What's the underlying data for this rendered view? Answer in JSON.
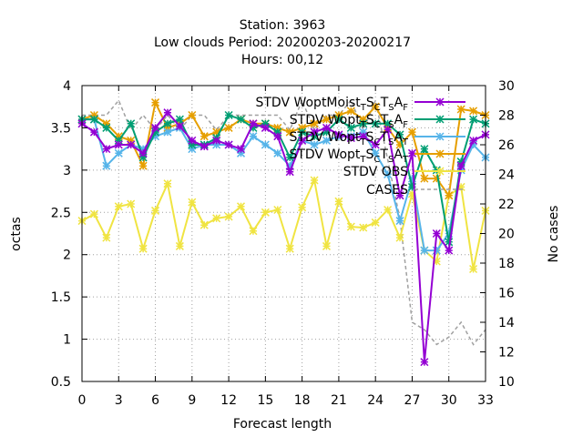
{
  "chart_data": {
    "type": "line",
    "title_lines": [
      "Station:      3963",
      "Low clouds   Period: 20200203-20200217",
      "Hours:  00,12"
    ],
    "xlabel": "Forecast length",
    "ylabel": "octas",
    "y2label": "No cases",
    "xlim": [
      0,
      33
    ],
    "ylim": [
      0.5,
      4
    ],
    "y2lim": [
      10,
      30
    ],
    "xticks": [
      "0",
      "3",
      "6",
      "9",
      "12",
      "15",
      "18",
      "21",
      "24",
      "27",
      "30",
      "33"
    ],
    "yticks": [
      "0.5",
      "1",
      "1.5",
      "2",
      "2.5",
      "3",
      "3.5",
      "4"
    ],
    "y2ticks": [
      "10",
      "12",
      "14",
      "16",
      "18",
      "20",
      "22",
      "24",
      "26",
      "28",
      "30"
    ],
    "grid": true,
    "legend_position": "top-right",
    "x": [
      0,
      1,
      2,
      3,
      4,
      5,
      6,
      7,
      8,
      9,
      10,
      11,
      12,
      13,
      14,
      15,
      16,
      17,
      18,
      19,
      20,
      21,
      22,
      23,
      24,
      25,
      26,
      27,
      28,
      29,
      30,
      31,
      32,
      33
    ],
    "series": [
      {
        "name": "STDV WoptMoist_TSCTSAF",
        "legend": {
          "base": "STDV WoptMoist",
          "subs": [
            "T",
            "S",
            "C",
            "T",
            "S",
            "A",
            "F"
          ]
        },
        "color": "#9400d3",
        "marker": "x",
        "axis": "y",
        "values": [
          3.55,
          3.45,
          3.25,
          3.3,
          3.3,
          3.2,
          3.5,
          3.68,
          3.52,
          3.35,
          3.28,
          3.35,
          3.3,
          3.25,
          3.55,
          3.5,
          3.4,
          2.98,
          3.35,
          3.45,
          3.5,
          3.42,
          3.38,
          3.4,
          3.3,
          3.48,
          2.7,
          3.2,
          0.73,
          2.25,
          2.05,
          3.05,
          3.35,
          3.42
        ]
      },
      {
        "name": "STDV Wopt_TSCTSAF",
        "legend": {
          "base": "STDV Wopt",
          "subs": [
            "T",
            "S",
            "C",
            "T",
            "S",
            "A",
            "F"
          ]
        },
        "color": "#009e73",
        "marker": "x",
        "axis": "y",
        "values": [
          3.6,
          3.6,
          3.5,
          3.35,
          3.55,
          3.15,
          3.45,
          3.55,
          3.6,
          3.3,
          3.3,
          3.38,
          3.65,
          3.6,
          3.5,
          3.55,
          3.45,
          3.15,
          3.45,
          3.4,
          3.45,
          3.6,
          3.5,
          3.55,
          3.55,
          3.55,
          3.42,
          2.8,
          3.25,
          3.0,
          2.15,
          3.1,
          3.6,
          3.55
        ]
      },
      {
        "name": "STDV Wopt_TSCTSAT",
        "legend": {
          "base": "STDV Wopt",
          "subs": [
            "T",
            "S",
            "C",
            "T",
            "S",
            "A",
            "T"
          ]
        },
        "color": "#56b4e9",
        "marker": "x",
        "axis": "y",
        "values": [
          3.6,
          3.6,
          3.05,
          3.2,
          3.3,
          3.25,
          3.4,
          3.45,
          3.5,
          3.25,
          3.3,
          3.3,
          3.3,
          3.2,
          3.4,
          3.3,
          3.2,
          3.05,
          3.35,
          3.3,
          3.35,
          3.4,
          3.4,
          3.45,
          3.2,
          2.95,
          2.4,
          2.9,
          2.05,
          2.05,
          2.25,
          3.0,
          3.3,
          3.15
        ]
      },
      {
        "name": "STDV Wopt_TSCTSAT",
        "legend": {
          "base": "STDV Wopt",
          "subs": [
            "T",
            "S",
            "C",
            "T",
            "S",
            "A",
            "T"
          ]
        },
        "color": "#e69f00",
        "marker": "x",
        "axis": "y",
        "values": [
          3.6,
          3.65,
          3.55,
          3.4,
          3.35,
          3.05,
          3.8,
          3.5,
          3.55,
          3.65,
          3.4,
          3.45,
          3.5,
          3.6,
          3.55,
          3.55,
          3.5,
          3.45,
          3.5,
          3.55,
          3.6,
          3.65,
          3.7,
          3.6,
          3.75,
          3.5,
          3.3,
          3.45,
          2.9,
          2.9,
          2.7,
          3.72,
          3.7,
          3.65
        ]
      },
      {
        "name": "STDV OBS",
        "legend": {
          "base": "STDV OBS",
          "subs": []
        },
        "color": "#f0e442",
        "marker": "x",
        "axis": "y",
        "values": [
          2.4,
          2.48,
          2.2,
          2.57,
          2.6,
          2.07,
          2.52,
          2.84,
          2.1,
          2.62,
          2.35,
          2.43,
          2.45,
          2.57,
          2.28,
          2.5,
          2.53,
          2.07,
          2.56,
          2.88,
          2.1,
          2.63,
          2.33,
          2.32,
          2.38,
          2.53,
          2.2,
          2.72,
          2.05,
          1.92,
          2.7,
          2.8,
          1.83,
          2.52
        ]
      },
      {
        "name": "CASES",
        "legend": {
          "base": "CASES",
          "subs": []
        },
        "color": "#a0a0a0",
        "marker": "none",
        "dash": true,
        "axis": "y2",
        "values": [
          28,
          28,
          28,
          29,
          27,
          28,
          27,
          28,
          27,
          28,
          28,
          27,
          28,
          28,
          28,
          28,
          28,
          27,
          29,
          27,
          28,
          28,
          29,
          27,
          29,
          25,
          21,
          14,
          13.5,
          12.5,
          13,
          14,
          12.5,
          13.5
        ]
      }
    ]
  }
}
